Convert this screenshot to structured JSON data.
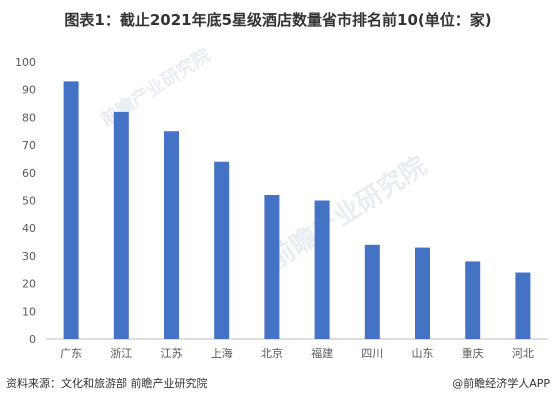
{
  "title": "图表1：截止2021年底5星级酒店数量省市排名前10(单位：家)",
  "source": "资料来源：文化和旅游部 前瞻产业研究院",
  "credit": "@前瞻经济学人APP",
  "watermark": "前瞻产业研究院",
  "colors": {
    "bar": "#4472c4",
    "axis": "#bfbfbf",
    "text": "#595959"
  },
  "chart_data": {
    "type": "bar",
    "categories": [
      "广东",
      "浙江",
      "江苏",
      "上海",
      "北京",
      "福建",
      "四川",
      "山东",
      "重庆",
      "河北"
    ],
    "values": [
      93,
      82,
      75,
      64,
      52,
      50,
      34,
      33,
      28,
      24
    ],
    "ylim": [
      0,
      100
    ],
    "yticks": [
      0,
      10,
      20,
      30,
      40,
      50,
      60,
      70,
      80,
      90,
      100
    ],
    "grid": false,
    "legend": "none"
  }
}
